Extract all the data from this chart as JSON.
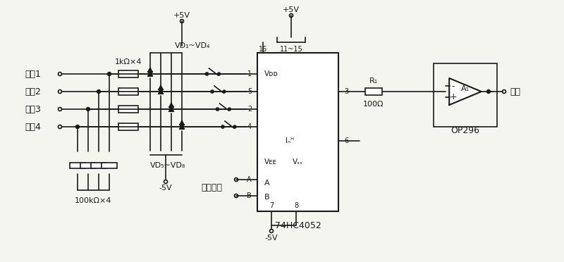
{
  "bg_color": "#f0f0f0",
  "line_color": "#000000",
  "title": "",
  "labels": {
    "input1": "输入1",
    "input2": "输入2",
    "input3": "输入3",
    "input4": "输入4",
    "res_top": "1kΩ×4",
    "res_bot": "100kΩ×4",
    "vd_top": "VD₁~VD₄",
    "vd_bot": "VD₅~VD₈",
    "vplus": "+5V",
    "vminus": "-5V",
    "vplus2": "+5V",
    "vminus2": "-5V",
    "ic_name": "74HC4052",
    "vdd": "Vᴅᴅ",
    "vee": "Vᴇᴇ",
    "vss": "Vₛₛ",
    "inh": "Iₙᴴ",
    "pin_a": "A",
    "pin_b": "B",
    "ctrl": "控制信号",
    "r1": "R₁",
    "r1_val": "100Ω",
    "opamp": "A₁",
    "opname": "OP296",
    "output": "输出",
    "pin16": "16",
    "pin11_15": "11~15",
    "pin1": "1",
    "pin5": "5",
    "pin2": "2",
    "pin4": "4",
    "pin3": "3",
    "pin6": "6",
    "pin7": "7",
    "pin8": "8",
    "pinA": "A",
    "pinB": "B"
  },
  "colors": {
    "line": "#1a1a1a",
    "text": "#1a1a1a",
    "bg": "#f5f5f0"
  }
}
